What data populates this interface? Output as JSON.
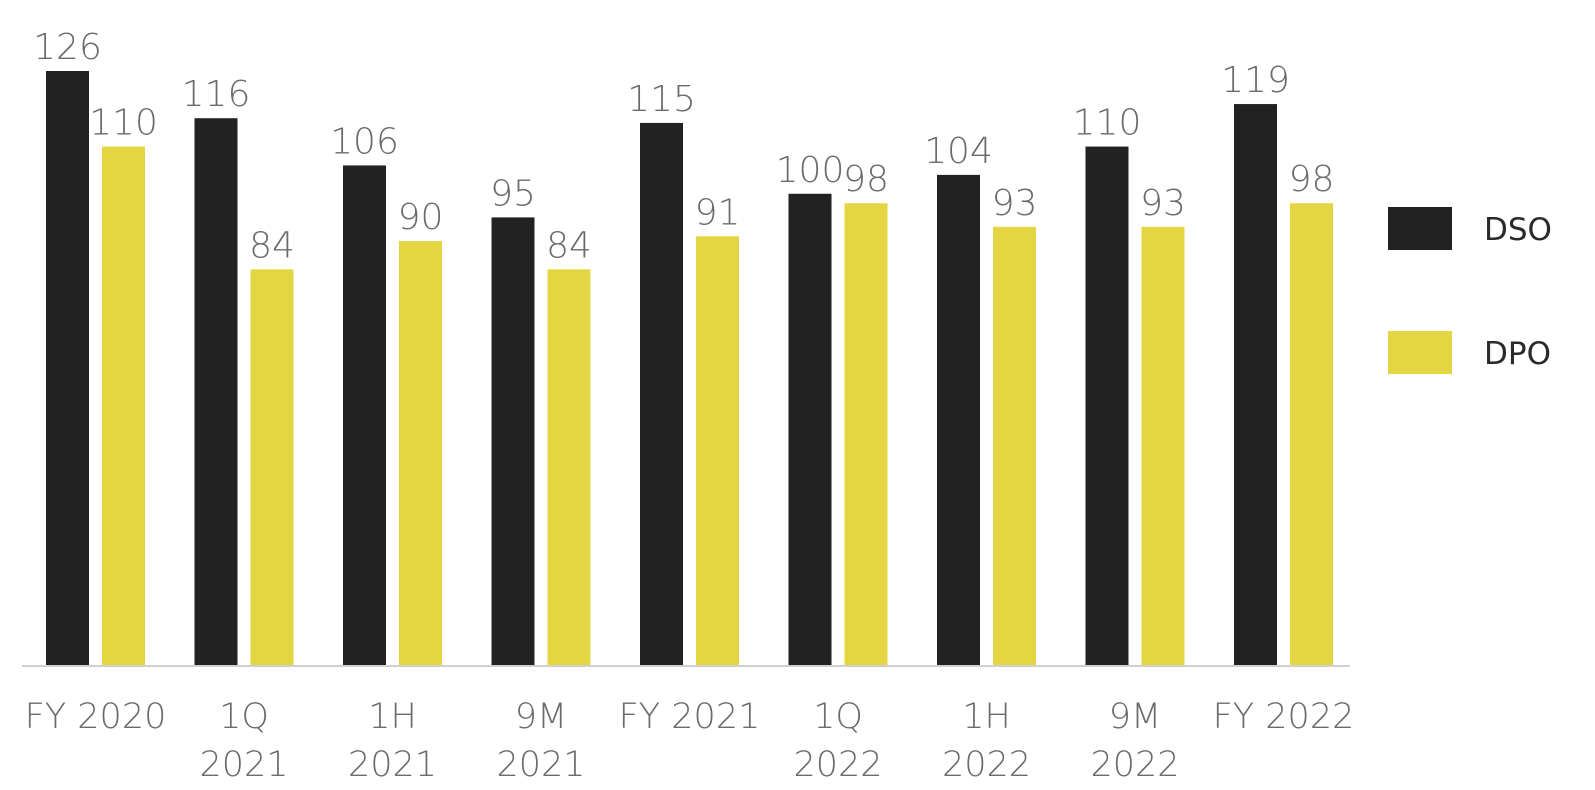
{
  "chart_data": {
    "type": "bar",
    "categories": [
      [
        "FY 2020"
      ],
      [
        "1Q",
        "2021"
      ],
      [
        "1H",
        "2021"
      ],
      [
        "9M",
        "2021"
      ],
      [
        "FY 2021"
      ],
      [
        "1Q",
        "2022"
      ],
      [
        "1H",
        "2022"
      ],
      [
        "9M",
        "2022"
      ],
      [
        "FY 2022"
      ]
    ],
    "series": [
      {
        "name": "DSO",
        "color": "#222222",
        "values": [
          126,
          116,
          106,
          95,
          115,
          100,
          104,
          110,
          119
        ]
      },
      {
        "name": "DPO",
        "color": "#e3d642",
        "values": [
          110,
          84,
          90,
          84,
          91,
          98,
          93,
          93,
          98
        ]
      }
    ],
    "ylim": [
      0,
      126
    ],
    "grid": false,
    "legend_position": "right"
  }
}
